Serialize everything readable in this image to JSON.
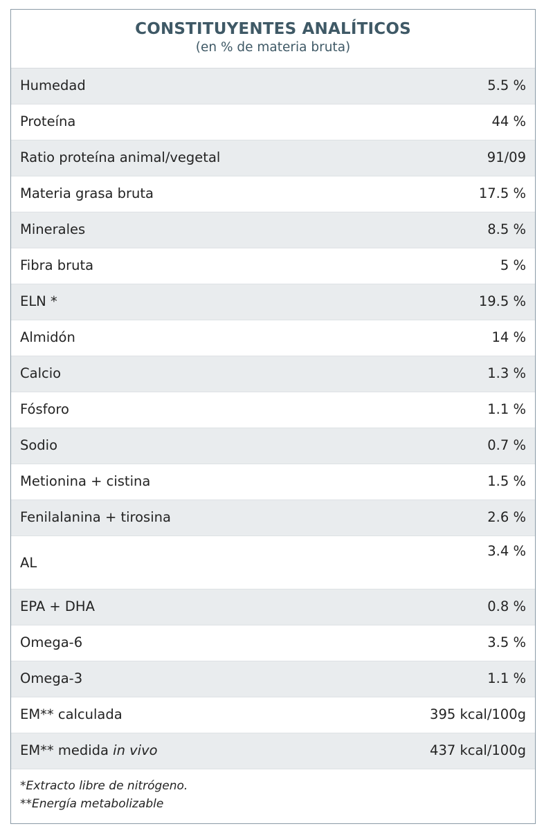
{
  "header": {
    "title": "CONSTITUYENTES ANALÍTICOS",
    "subtitle": "(en % de materia bruta)"
  },
  "rows": [
    {
      "label": "Humedad",
      "value": "5.5 %"
    },
    {
      "label": "Proteína",
      "value": "44 %"
    },
    {
      "label": "Ratio proteína animal/vegetal",
      "value": "91/09"
    },
    {
      "label": "Materia grasa bruta",
      "value": "17.5 %"
    },
    {
      "label": "Minerales",
      "value": "8.5 %"
    },
    {
      "label": "Fibra bruta",
      "value": "5 %"
    },
    {
      "label": "ELN *",
      "value": "19.5 %"
    },
    {
      "label": "Almidón",
      "value": "14 %"
    },
    {
      "label": "Calcio",
      "value": "1.3 %"
    },
    {
      "label": "Fósforo",
      "value": "1.1 %"
    },
    {
      "label": "Sodio",
      "value": "0.7 %"
    },
    {
      "label": "Metionina + cistina",
      "value": "1.5 %"
    },
    {
      "label": "Fenilalanina + tirosina",
      "value": "2.6 %"
    },
    {
      "label": "AL",
      "value": "3.4 %"
    },
    {
      "label": "EPA + DHA",
      "value": "0.8 %"
    },
    {
      "label": "Omega-6",
      "value": "3.5 %"
    },
    {
      "label": "Omega-3",
      "value": "1.1 %"
    },
    {
      "label": "EM** calculada",
      "value": "395 kcal/100g"
    },
    {
      "label_prefix": "EM** medida ",
      "label_italic": "in vivo",
      "value": "437 kcal/100g"
    }
  ],
  "notes": {
    "line1": "*Extracto libre de nitrógeno.",
    "line2": "**Energía metabolizable"
  }
}
